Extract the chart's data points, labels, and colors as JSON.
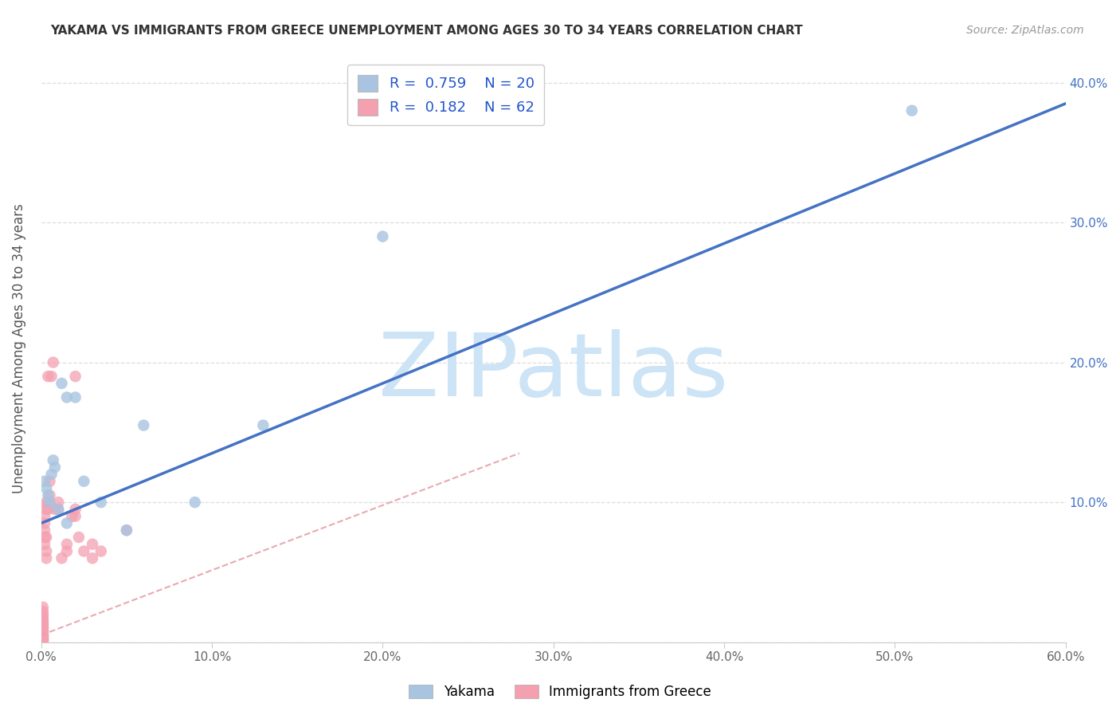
{
  "title": "YAKAMA VS IMMIGRANTS FROM GREECE UNEMPLOYMENT AMONG AGES 30 TO 34 YEARS CORRELATION CHART",
  "source": "Source: ZipAtlas.com",
  "ylabel": "Unemployment Among Ages 30 to 34 years",
  "xmin": 0.0,
  "xmax": 0.6,
  "ymin": 0.0,
  "ymax": 0.42,
  "xticks": [
    0.0,
    0.1,
    0.2,
    0.3,
    0.4,
    0.5,
    0.6
  ],
  "yticks": [
    0.0,
    0.1,
    0.2,
    0.3,
    0.4
  ],
  "ytick_right_labels": [
    "",
    "10.0%",
    "20.0%",
    "30.0%",
    "40.0%"
  ],
  "xtick_labels": [
    "0.0%",
    "10.0%",
    "20.0%",
    "30.0%",
    "40.0%",
    "50.0%",
    "60.0%"
  ],
  "yakama_color": "#a8c4e0",
  "greece_color": "#f4a0b0",
  "yakama_line_color": "#4472c4",
  "greece_line_color": "#e8a0a8",
  "legend_R_yakama": "0.759",
  "legend_N_yakama": "20",
  "legend_R_greece": "0.182",
  "legend_N_greece": "62",
  "watermark": "ZIPatlas",
  "watermark_color": "#cce4f5",
  "legend_labels": [
    "Yakama",
    "Immigrants from Greece"
  ],
  "yakama_x": [
    0.002,
    0.003,
    0.004,
    0.005,
    0.006,
    0.007,
    0.008,
    0.01,
    0.012,
    0.015,
    0.015,
    0.02,
    0.025,
    0.035,
    0.05,
    0.06,
    0.09,
    0.13,
    0.2,
    0.51
  ],
  "yakama_y": [
    0.115,
    0.11,
    0.105,
    0.1,
    0.12,
    0.13,
    0.125,
    0.095,
    0.185,
    0.175,
    0.085,
    0.175,
    0.115,
    0.1,
    0.08,
    0.155,
    0.1,
    0.155,
    0.29,
    0.38
  ],
  "greece_x": [
    0.001,
    0.001,
    0.001,
    0.001,
    0.001,
    0.001,
    0.001,
    0.001,
    0.001,
    0.001,
    0.001,
    0.001,
    0.001,
    0.001,
    0.001,
    0.001,
    0.001,
    0.001,
    0.001,
    0.001,
    0.001,
    0.001,
    0.001,
    0.001,
    0.001,
    0.001,
    0.001,
    0.001,
    0.001,
    0.002,
    0.002,
    0.002,
    0.002,
    0.002,
    0.003,
    0.003,
    0.003,
    0.003,
    0.003,
    0.004,
    0.004,
    0.004,
    0.005,
    0.005,
    0.006,
    0.007,
    0.008,
    0.01,
    0.01,
    0.012,
    0.015,
    0.015,
    0.018,
    0.02,
    0.02,
    0.02,
    0.022,
    0.025,
    0.03,
    0.03,
    0.035,
    0.05
  ],
  "greece_y": [
    0.001,
    0.001,
    0.001,
    0.002,
    0.002,
    0.002,
    0.003,
    0.003,
    0.004,
    0.004,
    0.005,
    0.005,
    0.005,
    0.006,
    0.006,
    0.007,
    0.008,
    0.009,
    0.01,
    0.011,
    0.012,
    0.013,
    0.014,
    0.015,
    0.016,
    0.018,
    0.02,
    0.022,
    0.025,
    0.07,
    0.075,
    0.08,
    0.085,
    0.09,
    0.06,
    0.065,
    0.075,
    0.095,
    0.1,
    0.095,
    0.1,
    0.19,
    0.105,
    0.115,
    0.19,
    0.2,
    0.095,
    0.095,
    0.1,
    0.06,
    0.07,
    0.065,
    0.09,
    0.09,
    0.095,
    0.19,
    0.075,
    0.065,
    0.06,
    0.07,
    0.065,
    0.08
  ],
  "yakama_line_x0": 0.0,
  "yakama_line_y0": 0.085,
  "yakama_line_x1": 0.6,
  "yakama_line_y1": 0.385,
  "greece_line_x0": 0.0,
  "greece_line_y0": 0.005,
  "greece_line_x1": 0.28,
  "greece_line_y1": 0.135
}
